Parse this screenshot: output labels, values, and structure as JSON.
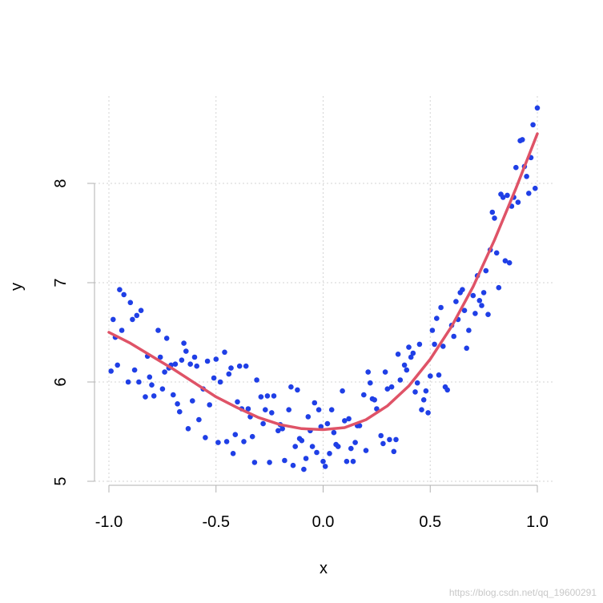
{
  "chart_data": {
    "type": "scatter",
    "xlabel": "x",
    "ylabel": "y",
    "xlim": [
      -1.0,
      1.0
    ],
    "ylim": [
      5.0,
      8.8
    ],
    "x_ticks": [
      -1.0,
      -0.5,
      0.0,
      0.5,
      1.0
    ],
    "x_tick_labels": [
      "-1.0",
      "-0.5",
      "0.0",
      "0.5",
      "1.0"
    ],
    "y_ticks": [
      5,
      6,
      7,
      8
    ],
    "y_tick_labels": [
      "5",
      "6",
      "7",
      "8"
    ],
    "grid": true,
    "colors": {
      "points": "#1f3fe6",
      "curve": "#df5367",
      "grid": "#d3d3d3",
      "axis": "#b0b0b0"
    },
    "series": [
      {
        "kind": "points",
        "points": [
          [
            -0.99,
            6.11
          ],
          [
            -0.98,
            6.63
          ],
          [
            -0.97,
            6.45
          ],
          [
            -0.96,
            6.17
          ],
          [
            -0.95,
            6.93
          ],
          [
            -0.94,
            6.52
          ],
          [
            -0.93,
            6.88
          ],
          [
            -0.91,
            6.0
          ],
          [
            -0.9,
            6.8
          ],
          [
            -0.89,
            6.63
          ],
          [
            -0.88,
            6.12
          ],
          [
            -0.87,
            6.67
          ],
          [
            -0.86,
            6.0
          ],
          [
            -0.85,
            6.72
          ],
          [
            -0.83,
            5.85
          ],
          [
            -0.82,
            6.26
          ],
          [
            -0.81,
            6.05
          ],
          [
            -0.8,
            5.97
          ],
          [
            -0.79,
            5.86
          ],
          [
            -0.77,
            6.52
          ],
          [
            -0.76,
            6.25
          ],
          [
            -0.75,
            5.93
          ],
          [
            -0.74,
            6.1
          ],
          [
            -0.73,
            6.44
          ],
          [
            -0.72,
            6.14
          ],
          [
            -0.71,
            6.17
          ],
          [
            -0.7,
            5.87
          ],
          [
            -0.69,
            6.18
          ],
          [
            -0.68,
            5.78
          ],
          [
            -0.67,
            5.7
          ],
          [
            -0.66,
            6.22
          ],
          [
            -0.65,
            6.39
          ],
          [
            -0.64,
            6.31
          ],
          [
            -0.63,
            5.53
          ],
          [
            -0.62,
            6.18
          ],
          [
            -0.61,
            5.81
          ],
          [
            -0.6,
            6.25
          ],
          [
            -0.59,
            6.16
          ],
          [
            -0.58,
            5.62
          ],
          [
            -0.56,
            5.93
          ],
          [
            -0.55,
            5.44
          ],
          [
            -0.54,
            6.21
          ],
          [
            -0.53,
            5.77
          ],
          [
            -0.51,
            6.04
          ],
          [
            -0.5,
            6.23
          ],
          [
            -0.49,
            5.39
          ],
          [
            -0.48,
            6.0
          ],
          [
            -0.46,
            6.3
          ],
          [
            -0.45,
            5.4
          ],
          [
            -0.44,
            6.08
          ],
          [
            -0.43,
            6.14
          ],
          [
            -0.42,
            5.28
          ],
          [
            -0.41,
            5.47
          ],
          [
            -0.4,
            5.8
          ],
          [
            -0.39,
            6.16
          ],
          [
            -0.38,
            5.73
          ],
          [
            -0.37,
            5.4
          ],
          [
            -0.36,
            6.16
          ],
          [
            -0.35,
            5.73
          ],
          [
            -0.34,
            5.65
          ],
          [
            -0.33,
            5.45
          ],
          [
            -0.32,
            5.19
          ],
          [
            -0.31,
            6.02
          ],
          [
            -0.29,
            5.85
          ],
          [
            -0.28,
            5.58
          ],
          [
            -0.27,
            5.72
          ],
          [
            -0.26,
            5.86
          ],
          [
            -0.25,
            5.19
          ],
          [
            -0.24,
            5.69
          ],
          [
            -0.23,
            5.86
          ],
          [
            -0.21,
            5.51
          ],
          [
            -0.2,
            5.57
          ],
          [
            -0.19,
            5.53
          ],
          [
            -0.18,
            5.21
          ],
          [
            -0.16,
            5.72
          ],
          [
            -0.15,
            5.95
          ],
          [
            -0.14,
            5.16
          ],
          [
            -0.13,
            5.35
          ],
          [
            -0.12,
            5.92
          ],
          [
            -0.11,
            5.43
          ],
          [
            -0.1,
            5.41
          ],
          [
            -0.09,
            5.12
          ],
          [
            -0.08,
            5.23
          ],
          [
            -0.07,
            5.65
          ],
          [
            -0.06,
            5.51
          ],
          [
            -0.05,
            5.35
          ],
          [
            -0.04,
            5.79
          ],
          [
            -0.03,
            5.29
          ],
          [
            -0.02,
            5.72
          ],
          [
            -0.01,
            5.55
          ],
          [
            0.0,
            5.2
          ],
          [
            0.01,
            5.15
          ],
          [
            0.02,
            5.58
          ],
          [
            0.03,
            5.28
          ],
          [
            0.04,
            5.72
          ],
          [
            0.05,
            5.49
          ],
          [
            0.06,
            5.37
          ],
          [
            0.07,
            5.35
          ],
          [
            0.09,
            5.91
          ],
          [
            0.1,
            5.61
          ],
          [
            0.11,
            5.2
          ],
          [
            0.12,
            5.63
          ],
          [
            0.13,
            5.33
          ],
          [
            0.14,
            5.2
          ],
          [
            0.15,
            5.39
          ],
          [
            0.16,
            5.56
          ],
          [
            0.17,
            5.56
          ],
          [
            0.19,
            5.87
          ],
          [
            0.2,
            5.31
          ],
          [
            0.21,
            6.1
          ],
          [
            0.22,
            5.99
          ],
          [
            0.23,
            5.83
          ],
          [
            0.24,
            5.82
          ],
          [
            0.25,
            5.73
          ],
          [
            0.27,
            5.46
          ],
          [
            0.28,
            5.38
          ],
          [
            0.29,
            6.1
          ],
          [
            0.3,
            5.93
          ],
          [
            0.31,
            5.42
          ],
          [
            0.32,
            5.95
          ],
          [
            0.33,
            5.3
          ],
          [
            0.34,
            5.42
          ],
          [
            0.35,
            6.28
          ],
          [
            0.36,
            6.02
          ],
          [
            0.38,
            6.17
          ],
          [
            0.39,
            6.12
          ],
          [
            0.4,
            6.35
          ],
          [
            0.41,
            6.25
          ],
          [
            0.42,
            6.29
          ],
          [
            0.43,
            5.9
          ],
          [
            0.44,
            5.99
          ],
          [
            0.45,
            6.38
          ],
          [
            0.46,
            5.72
          ],
          [
            0.47,
            5.82
          ],
          [
            0.48,
            5.91
          ],
          [
            0.49,
            5.69
          ],
          [
            0.5,
            6.06
          ],
          [
            0.51,
            6.52
          ],
          [
            0.52,
            6.38
          ],
          [
            0.53,
            6.64
          ],
          [
            0.54,
            6.07
          ],
          [
            0.55,
            6.75
          ],
          [
            0.56,
            6.36
          ],
          [
            0.57,
            5.95
          ],
          [
            0.58,
            5.92
          ],
          [
            0.6,
            6.57
          ],
          [
            0.61,
            6.46
          ],
          [
            0.62,
            6.81
          ],
          [
            0.63,
            6.63
          ],
          [
            0.64,
            6.9
          ],
          [
            0.65,
            6.93
          ],
          [
            0.66,
            6.72
          ],
          [
            0.67,
            6.34
          ],
          [
            0.68,
            6.52
          ],
          [
            0.7,
            6.87
          ],
          [
            0.71,
            6.69
          ],
          [
            0.72,
            7.07
          ],
          [
            0.73,
            6.82
          ],
          [
            0.74,
            6.77
          ],
          [
            0.75,
            6.9
          ],
          [
            0.76,
            7.12
          ],
          [
            0.77,
            6.68
          ],
          [
            0.78,
            7.33
          ],
          [
            0.79,
            7.71
          ],
          [
            0.8,
            7.65
          ],
          [
            0.81,
            7.3
          ],
          [
            0.82,
            6.95
          ],
          [
            0.83,
            7.89
          ],
          [
            0.84,
            7.86
          ],
          [
            0.85,
            7.22
          ],
          [
            0.86,
            7.88
          ],
          [
            0.87,
            7.2
          ],
          [
            0.88,
            7.77
          ],
          [
            0.89,
            7.86
          ],
          [
            0.9,
            8.16
          ],
          [
            0.91,
            7.81
          ],
          [
            0.92,
            8.43
          ],
          [
            0.93,
            8.44
          ],
          [
            0.94,
            8.17
          ],
          [
            0.95,
            8.07
          ],
          [
            0.96,
            7.9
          ],
          [
            0.97,
            8.26
          ],
          [
            0.98,
            8.59
          ],
          [
            0.99,
            7.95
          ],
          [
            1.0,
            8.76
          ]
        ]
      },
      {
        "kind": "curve",
        "x": [
          -1.0,
          -0.9,
          -0.8,
          -0.7,
          -0.6,
          -0.5,
          -0.4,
          -0.3,
          -0.2,
          -0.1,
          0.0,
          0.1,
          0.2,
          0.3,
          0.4,
          0.5,
          0.6,
          0.7,
          0.8,
          0.9,
          1.0
        ],
        "y": [
          6.5,
          6.39,
          6.26,
          6.13,
          5.99,
          5.85,
          5.74,
          5.64,
          5.57,
          5.53,
          5.52,
          5.54,
          5.62,
          5.76,
          5.96,
          6.23,
          6.56,
          6.96,
          7.43,
          7.95,
          8.5
        ]
      }
    ]
  },
  "watermark": "https://blog.csdn.net/qq_19600291"
}
